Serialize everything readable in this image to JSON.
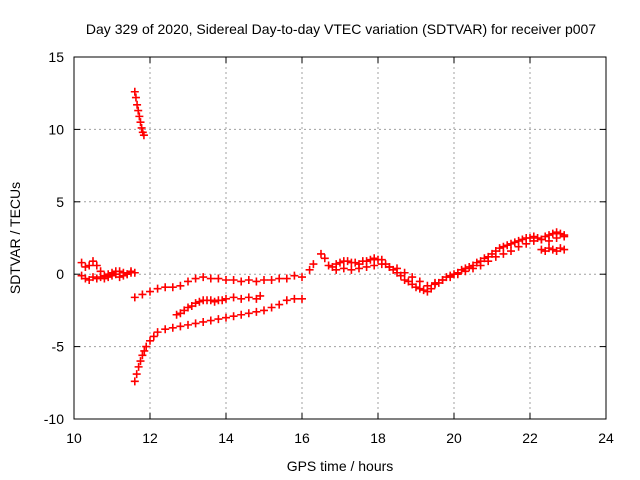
{
  "chart_data": {
    "type": "scatter",
    "title": "Day 329 of 2020, Sidereal Day-to-day VTEC variation (SDTVAR) for receiver p007",
    "xlabel": "GPS time / hours",
    "ylabel": "SDTVAR / TECUs",
    "xlim": [
      10,
      24
    ],
    "ylim": [
      -10,
      15
    ],
    "xticks": [
      "10",
      "12",
      "14",
      "16",
      "18",
      "20",
      "22",
      "24"
    ],
    "yticks": [
      "-10",
      "-5",
      "0",
      "5",
      "10",
      "15"
    ],
    "grid": true,
    "marker": "+",
    "series": [
      {
        "name": "p007",
        "color": "#ff0000",
        "x": [
          10.2,
          10.3,
          10.4,
          10.5,
          10.6,
          10.7,
          10.8,
          10.9,
          11.0,
          11.1,
          11.2,
          11.3,
          11.4,
          11.5,
          11.6,
          10.2,
          10.3,
          10.4,
          10.5,
          10.6,
          10.7,
          10.8,
          10.9,
          11.0,
          11.1,
          11.2,
          11.3,
          11.4,
          11.5,
          11.6,
          11.63,
          11.66,
          11.69,
          11.72,
          11.75,
          11.78,
          11.81,
          11.84,
          11.6,
          11.8,
          12.0,
          12.2,
          12.4,
          12.6,
          12.8,
          13.0,
          13.2,
          13.4,
          13.6,
          13.8,
          14.0,
          14.2,
          14.4,
          14.6,
          14.8,
          15.0,
          15.2,
          15.4,
          15.6,
          15.8,
          16.0,
          16.2,
          16.3,
          11.6,
          11.65,
          11.7,
          11.75,
          11.8,
          11.85,
          11.9,
          12.0,
          12.1,
          12.2,
          12.4,
          12.6,
          12.8,
          13.0,
          13.2,
          13.4,
          13.6,
          13.8,
          14.0,
          14.2,
          14.4,
          14.6,
          14.8,
          15.0,
          15.2,
          15.4,
          15.6,
          15.8,
          16.0,
          12.7,
          12.8,
          12.9,
          13.0,
          13.1,
          13.2,
          13.3,
          13.4,
          13.5,
          13.6,
          13.7,
          13.8,
          13.9,
          14.0,
          14.2,
          14.4,
          14.6,
          14.8,
          14.9,
          16.5,
          16.6,
          16.7,
          16.8,
          16.9,
          17.0,
          17.1,
          17.2,
          17.3,
          17.4,
          17.5,
          17.6,
          17.7,
          17.8,
          17.9,
          18.0,
          18.1,
          18.2,
          18.3,
          18.4,
          18.5,
          18.6,
          18.7,
          18.8,
          18.9,
          19.0,
          19.1,
          19.2,
          19.3,
          19.4,
          19.5,
          19.6,
          19.7,
          19.8,
          19.9,
          20.0,
          20.1,
          20.2,
          20.3,
          20.4,
          20.5,
          20.6,
          20.7,
          20.8,
          20.9,
          21.0,
          21.1,
          21.2,
          21.3,
          21.4,
          21.5,
          21.6,
          21.7,
          21.8,
          21.9,
          22.0,
          22.1,
          22.2,
          22.3,
          22.4,
          22.5,
          22.6,
          22.7,
          22.8,
          22.9,
          16.9,
          17.1,
          17.3,
          17.5,
          17.7,
          17.9,
          18.1,
          18.3,
          18.5,
          18.7,
          18.9,
          19.1,
          19.3,
          19.5,
          19.7,
          19.9,
          20.1,
          20.3,
          20.5,
          20.7,
          20.9,
          21.1,
          21.3,
          21.5,
          21.7,
          21.9,
          22.1,
          22.3,
          22.5,
          22.7,
          22.9,
          22.3,
          22.4,
          22.5,
          22.6,
          22.7,
          22.8,
          22.9
        ],
        "y": [
          0.8,
          0.5,
          0.6,
          0.9,
          0.6,
          0.2,
          -0.1,
          0.0,
          0.1,
          0.2,
          0.2,
          0.1,
          0.0,
          0.2,
          0.1,
          -0.1,
          -0.3,
          -0.4,
          -0.2,
          -0.3,
          -0.2,
          -0.3,
          -0.2,
          -0.1,
          0.0,
          -0.2,
          -0.1,
          0.0,
          0.1,
          12.6,
          12.2,
          11.7,
          11.3,
          10.9,
          10.5,
          10.1,
          9.8,
          9.6,
          -1.6,
          -1.4,
          -1.2,
          -1.0,
          -0.9,
          -0.9,
          -0.8,
          -0.5,
          -0.3,
          -0.2,
          -0.3,
          -0.3,
          -0.4,
          -0.4,
          -0.5,
          -0.4,
          -0.5,
          -0.4,
          -0.4,
          -0.3,
          -0.3,
          -0.1,
          -0.2,
          0.3,
          0.7,
          -7.4,
          -6.9,
          -6.4,
          -6.0,
          -5.6,
          -5.3,
          -5.0,
          -4.6,
          -4.3,
          -4.0,
          -3.8,
          -3.7,
          -3.6,
          -3.5,
          -3.4,
          -3.3,
          -3.2,
          -3.1,
          -3.0,
          -2.9,
          -2.8,
          -2.7,
          -2.6,
          -2.5,
          -2.3,
          -2.1,
          -1.8,
          -1.7,
          -1.7,
          -2.8,
          -2.7,
          -2.5,
          -2.3,
          -2.2,
          -2.0,
          -1.9,
          -1.8,
          -1.8,
          -1.8,
          -1.9,
          -1.8,
          -1.8,
          -1.7,
          -1.6,
          -1.7,
          -1.6,
          -1.7,
          -1.5,
          1.4,
          1.1,
          0.6,
          0.5,
          0.7,
          0.8,
          0.9,
          0.9,
          0.8,
          0.8,
          0.7,
          0.9,
          0.9,
          1.0,
          1.1,
          1.0,
          1.0,
          0.7,
          0.5,
          0.3,
          0.1,
          -0.1,
          -0.4,
          -0.5,
          -0.7,
          -0.9,
          -1.0,
          -1.1,
          -1.2,
          -1.0,
          -0.7,
          -0.6,
          -0.4,
          -0.2,
          -0.1,
          0.0,
          0.1,
          0.3,
          0.4,
          0.5,
          0.6,
          0.8,
          0.9,
          1.1,
          1.2,
          1.4,
          1.6,
          1.8,
          1.9,
          2.0,
          2.1,
          2.2,
          2.3,
          2.4,
          2.5,
          2.5,
          2.6,
          2.5,
          2.4,
          2.6,
          2.7,
          2.8,
          2.9,
          2.8,
          2.7,
          0.3,
          0.4,
          0.3,
          0.4,
          0.5,
          0.6,
          0.7,
          0.5,
          0.4,
          0.1,
          -0.2,
          -0.5,
          -0.8,
          -0.6,
          -0.4,
          -0.2,
          0.0,
          0.2,
          0.4,
          0.6,
          0.9,
          1.2,
          1.4,
          1.6,
          1.9,
          2.1,
          2.3,
          2.4,
          2.3,
          2.5,
          2.6,
          1.7,
          1.6,
          1.8,
          1.7,
          1.6,
          1.8,
          1.7
        ]
      }
    ]
  }
}
